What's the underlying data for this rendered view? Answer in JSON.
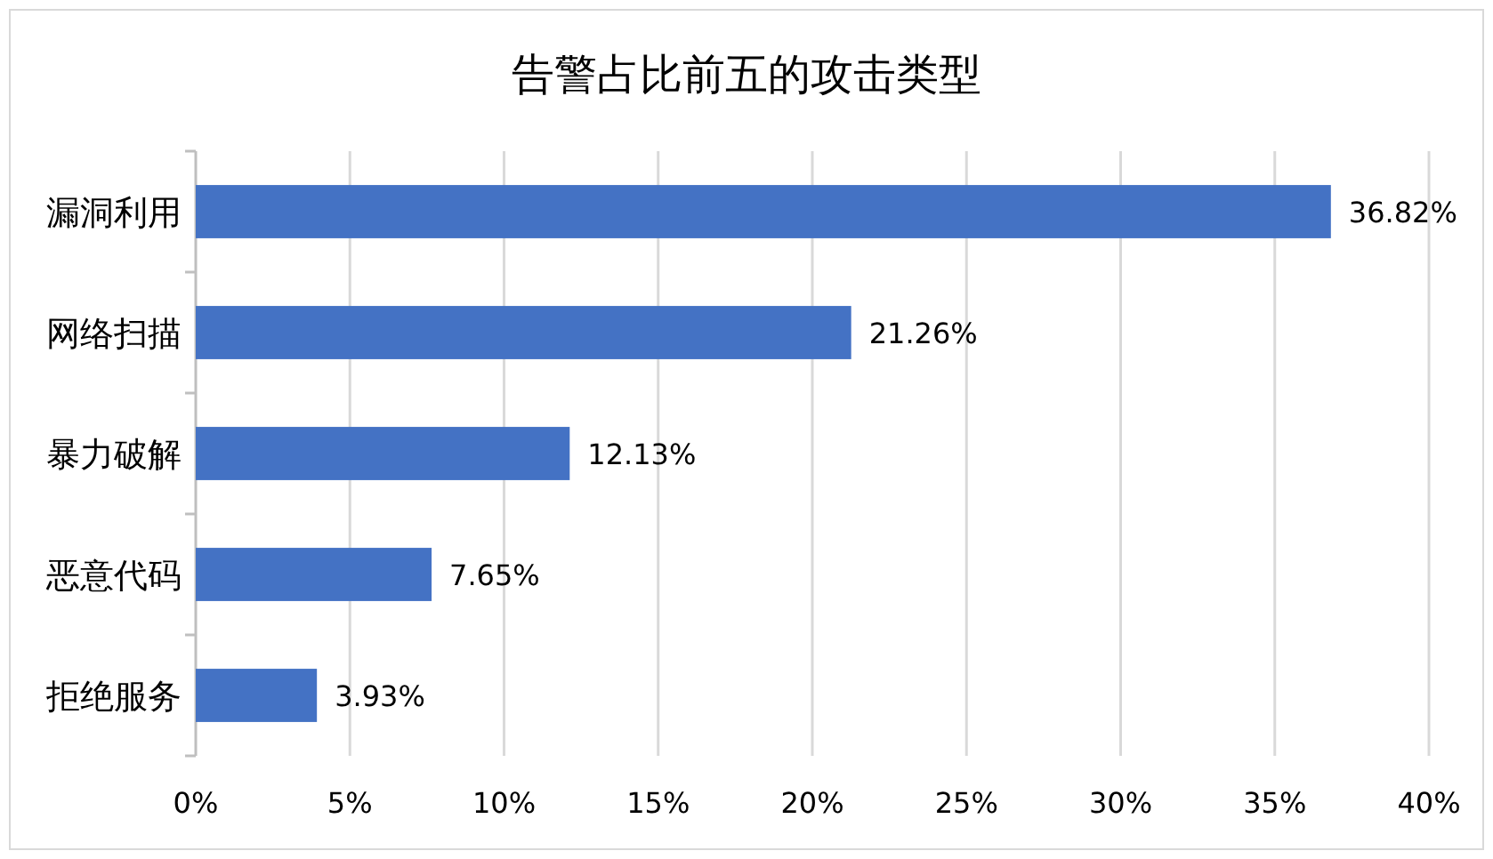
{
  "chart_data": {
    "type": "bar",
    "orientation": "horizontal",
    "title": "告警占比前五的攻击类型",
    "categories": [
      "漏洞利用",
      "网络扫描",
      "暴力破解",
      "恶意代码",
      "拒绝服务"
    ],
    "values": [
      36.82,
      21.26,
      12.13,
      7.65,
      3.93
    ],
    "value_labels": [
      "36.82%",
      "21.26%",
      "12.13%",
      "7.65%",
      "3.93%"
    ],
    "color": "#4472c4",
    "xlim": [
      0,
      40
    ],
    "xticks": [
      {
        "value": 0,
        "label": "0%"
      },
      {
        "value": 5,
        "label": "5%"
      },
      {
        "value": 10,
        "label": "10%"
      },
      {
        "value": 15,
        "label": "15%"
      },
      {
        "value": 20,
        "label": "20%"
      },
      {
        "value": 25,
        "label": "25%"
      },
      {
        "value": 30,
        "label": "30%"
      },
      {
        "value": 35,
        "label": "35%"
      },
      {
        "value": 40,
        "label": "40%"
      }
    ],
    "grid": "x"
  }
}
